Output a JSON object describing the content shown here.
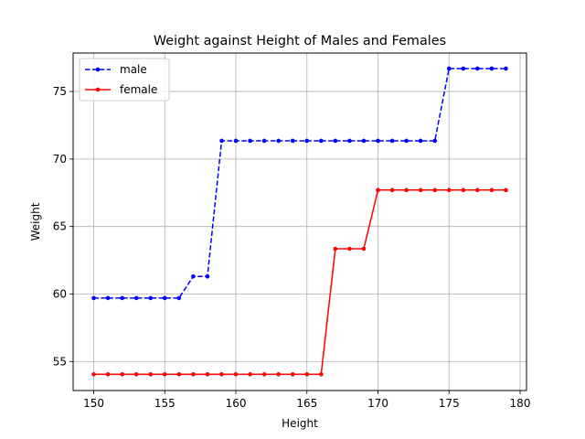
{
  "chart_data": {
    "type": "line",
    "title": "Weight against Height of Males and Females",
    "xlabel": "Height",
    "ylabel": "Weight",
    "xlim": [
      148.55,
      180.45
    ],
    "ylim": [
      52.85,
      77.85
    ],
    "xticks": [
      150,
      155,
      160,
      165,
      170,
      175,
      180
    ],
    "yticks": [
      55,
      60,
      65,
      70,
      75
    ],
    "grid": true,
    "legend_position": "upper left",
    "x": [
      150,
      151,
      152,
      153,
      154,
      155,
      156,
      157,
      158,
      159,
      160,
      161,
      162,
      163,
      164,
      165,
      166,
      167,
      168,
      169,
      170,
      171,
      172,
      173,
      174,
      175,
      176,
      177,
      178,
      179
    ],
    "series": [
      {
        "name": "male",
        "color": "#0000ff",
        "linestyle": "dashed",
        "marker": "point",
        "values": [
          59.7,
          59.7,
          59.7,
          59.7,
          59.7,
          59.7,
          59.7,
          61.3,
          61.3,
          71.35,
          71.35,
          71.35,
          71.35,
          71.35,
          71.35,
          71.35,
          71.35,
          71.35,
          71.35,
          71.35,
          71.35,
          71.35,
          71.35,
          71.35,
          71.35,
          76.7,
          76.7,
          76.7,
          76.7,
          76.7
        ]
      },
      {
        "name": "female",
        "color": "#ff0000",
        "linestyle": "solid",
        "marker": "point",
        "values": [
          54.05,
          54.05,
          54.05,
          54.05,
          54.05,
          54.05,
          54.05,
          54.05,
          54.05,
          54.05,
          54.05,
          54.05,
          54.05,
          54.05,
          54.05,
          54.05,
          54.05,
          63.35,
          63.35,
          63.35,
          67.7,
          67.7,
          67.7,
          67.7,
          67.7,
          67.7,
          67.7,
          67.7,
          67.7,
          67.7
        ]
      }
    ]
  }
}
